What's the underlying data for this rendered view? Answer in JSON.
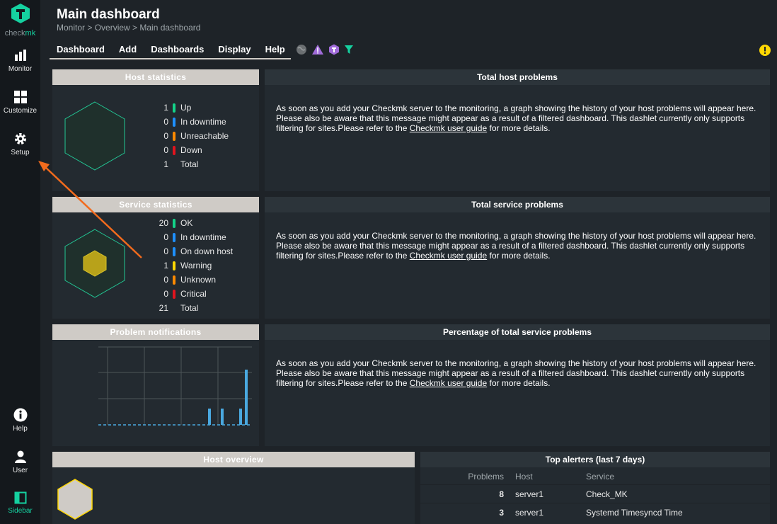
{
  "nav": {
    "brand_a": "check",
    "brand_b": "mk",
    "items": [
      {
        "label": "Monitor"
      },
      {
        "label": "Customize"
      },
      {
        "label": "Setup"
      },
      {
        "label": "Help"
      },
      {
        "label": "User"
      },
      {
        "label": "Sidebar"
      }
    ]
  },
  "header": {
    "title": "Main dashboard",
    "breadcrumb": "Monitor > Overview > Main dashboard"
  },
  "menubar": [
    "Dashboard",
    "Add",
    "Dashboards",
    "Display",
    "Help"
  ],
  "host_stats": {
    "title": "Host statistics",
    "rows": [
      {
        "count": "1",
        "label": "Up",
        "color": "#13d389"
      },
      {
        "count": "0",
        "label": "In downtime",
        "color": "#1e90ff"
      },
      {
        "count": "0",
        "label": "Unreachable",
        "color": "#ff8a00"
      },
      {
        "count": "0",
        "label": "Down",
        "color": "#e1141e"
      },
      {
        "count": "1",
        "label": "Total",
        "color": ""
      }
    ]
  },
  "service_stats": {
    "title": "Service statistics",
    "rows": [
      {
        "count": "20",
        "label": "OK",
        "color": "#13d389"
      },
      {
        "count": "0",
        "label": "In downtime",
        "color": "#1e90ff"
      },
      {
        "count": "0",
        "label": "On down host",
        "color": "#1e90ff"
      },
      {
        "count": "1",
        "label": "Warning",
        "color": "#ffd703"
      },
      {
        "count": "0",
        "label": "Unknown",
        "color": "#ff8a00"
      },
      {
        "count": "0",
        "label": "Critical",
        "color": "#e1141e"
      },
      {
        "count": "21",
        "label": "Total",
        "color": ""
      }
    ]
  },
  "problem_notifications": {
    "title": "Problem notifications"
  },
  "host_overview": {
    "title": "Host overview"
  },
  "panels": {
    "total_host_problems": "Total host problems",
    "total_service_problems": "Total service problems",
    "percentage_service_problems": "Percentage of total service problems",
    "msg_text": "As soon as you add your Checkmk server to the monitoring, a graph showing the history of your host problems will appear here. Please also be aware that this message might appear as a result of a filtered dashboard. This dashlet currently only supports filtering for sites.Please refer to the ",
    "msg_link": "Checkmk user guide",
    "msg_tail": " for more details."
  },
  "top_alerters": {
    "title": "Top alerters (last 7 days)",
    "headers": [
      "Problems",
      "Host",
      "Service"
    ],
    "rows": [
      {
        "problems": "8",
        "host": "server1",
        "service": "Check_MK"
      },
      {
        "problems": "3",
        "host": "server1",
        "service": "Systemd Timesyncd Time"
      }
    ]
  }
}
